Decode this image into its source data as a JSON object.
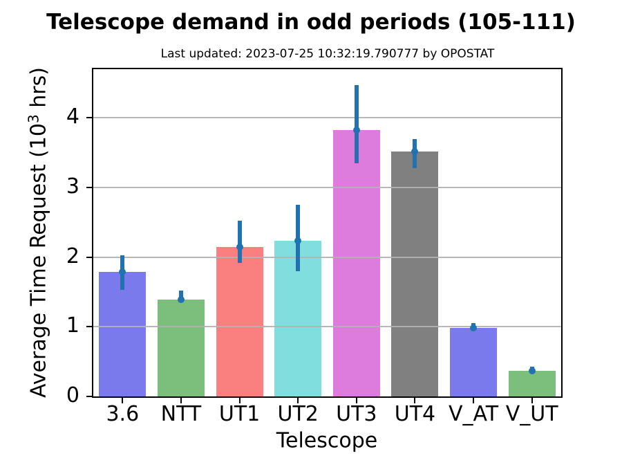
{
  "title": "Telescope demand in odd periods (105-111)",
  "subtitle": "Last updated: 2023-07-25 10:32:19.790777 by OPOSTAT",
  "chart_data": {
    "type": "bar",
    "title": "Telescope demand in odd periods (105-111)",
    "subtitle": "Last updated: 2023-07-25 10:32:19.790777 by OPOSTAT",
    "xlabel": "Telescope",
    "ylabel": "Average Time Request (10^3 hrs)",
    "ylabel_parts": {
      "prefix": "Average Time Request (10",
      "sup": "3",
      "suffix": " hrs)"
    },
    "categories": [
      "3.6",
      "NTT",
      "UT1",
      "UT2",
      "UT3",
      "UT4",
      "V_AT",
      "V_UT"
    ],
    "values": [
      1.79,
      1.39,
      2.15,
      2.24,
      3.83,
      3.52,
      0.98,
      0.37
    ],
    "error_low": [
      1.53,
      1.35,
      1.92,
      1.8,
      3.35,
      3.28,
      0.95,
      0.33
    ],
    "error_high": [
      2.03,
      1.52,
      2.52,
      2.75,
      4.47,
      3.7,
      1.05,
      0.43
    ],
    "bar_colors": [
      "#7b7aed",
      "#7cbe7c",
      "#fa8080",
      "#80dede",
      "#dd7cdd",
      "#808080",
      "#7b7aed",
      "#7cbe7c"
    ],
    "error_color": "#2272b2",
    "yticks": [
      0,
      1,
      2,
      3,
      4
    ],
    "ylim": [
      0,
      4.7
    ],
    "grid": true,
    "grid_above_bars": true,
    "legend": null,
    "bar_width_fraction": 0.8
  }
}
